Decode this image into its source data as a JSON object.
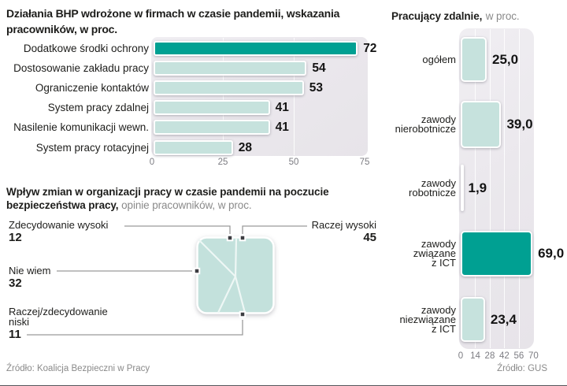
{
  "colors": {
    "accent_teal": "#00a092",
    "light_teal": "#c6e2dd",
    "plot_background": "#eae7ec",
    "text": "#1d1d1b",
    "muted_gray": "#8a8a8a"
  },
  "chart_data": [
    {
      "id": "bhp_measures",
      "type": "bar",
      "orientation": "horizontal",
      "title_lines": [
        "Działania BHP wdrożone w firmach w czasie pandemii, wskazania",
        "pracowników, w proc."
      ],
      "categories": [
        "Dodatkowe środki ochrony",
        "Dostosowanie zakładu pracy",
        "Ograniczenie kontaktów",
        "System pracy zdalnej",
        "Nasilenie komunikacji wewn.",
        "System pracy rotacyjnej"
      ],
      "values": [
        72,
        54,
        53,
        41,
        41,
        28
      ],
      "value_labels": [
        "72",
        "54",
        "53",
        "41",
        "41",
        "28"
      ],
      "xticks": [
        0,
        25,
        50,
        75
      ],
      "xlim": [
        0,
        75
      ],
      "gridlines": [
        25,
        50
      ],
      "highlight_index": 0,
      "legend": "none",
      "source": "Źródło: Koalicja Bezpieczni w Pracy"
    },
    {
      "id": "safety_perception",
      "type": "pie",
      "shape": "rounded-square",
      "title_bold_lines": [
        "Wpływ zmian w organizacji pracy w czasie pandemii  na poczucie",
        "bezpieczeństwa pracy,"
      ],
      "title_regular": "opinie pracowników, w proc.",
      "slices": [
        {
          "label_lines": [
            "Zdecydowanie wysoki"
          ],
          "value": 12,
          "value_label": "12"
        },
        {
          "label_lines": [
            "Raczej wysoki"
          ],
          "value": 45,
          "value_label": "45"
        },
        {
          "label_lines": [
            "Nie wiem"
          ],
          "value": 32,
          "value_label": "32"
        },
        {
          "label_lines": [
            "Raczej/zdecydowanie",
            "niski"
          ],
          "value": 11,
          "value_label": "11"
        }
      ]
    },
    {
      "id": "remote_work",
      "type": "bar",
      "orientation": "horizontal",
      "title_bold": "Pracujący zdalnie,",
      "title_regular": "w proc.",
      "categories": [
        "ogółem",
        "zawody nierobotnicze",
        "zawody robotnicze",
        "zawody związane z ICT",
        "zawody niezwiązane z ICT"
      ],
      "category_lines": [
        [
          "ogółem"
        ],
        [
          "zawody",
          "nierobotnicze"
        ],
        [
          "zawody",
          "robotnicze"
        ],
        [
          "zawody",
          "związane",
          "z ICT"
        ],
        [
          "zawody",
          "niezwiązane",
          "z ICT"
        ]
      ],
      "values": [
        25.0,
        39.0,
        1.9,
        69.0,
        23.4
      ],
      "value_labels": [
        "25,0",
        "39,0",
        "1,9",
        "69,0",
        "23,4"
      ],
      "xticks": [
        0,
        14,
        28,
        42,
        56,
        70
      ],
      "xlim": [
        0,
        70
      ],
      "gridlines": [
        14,
        28,
        42,
        56
      ],
      "highlight_index": 3,
      "legend": "none",
      "source": "Źródło: GUS"
    }
  ]
}
